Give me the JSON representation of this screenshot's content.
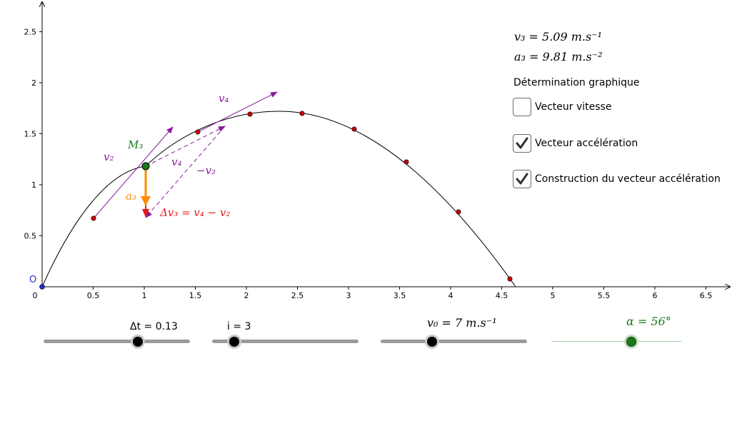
{
  "graph": {
    "origin_label": "O",
    "x_ticks": [
      "0",
      "0.5",
      "1",
      "1.5",
      "2",
      "2.5",
      "3",
      "3.5",
      "4",
      "4.5",
      "5",
      "5.5",
      "6",
      "6.5"
    ],
    "y_ticks": [
      "0.5",
      "1",
      "1.5",
      "2",
      "2.5"
    ],
    "point_label": "M₃",
    "vector_labels": {
      "v2": "v₂",
      "v4": "v₄",
      "minus_v2": "−v₂",
      "a3": "a₃",
      "delta": "Δv₃ = v₄ − v₂"
    },
    "colors": {
      "velocity": "#8b1a9e",
      "acceleration": "#ff8c00",
      "delta": "#e21b1b",
      "point": "#1a7a1a",
      "sample": "#cc0000",
      "origin": "#1f2fcc"
    }
  },
  "readouts": {
    "v3": "v₃ = 5.09 m.s⁻¹",
    "a3": "a₃ = 9.81 m.s⁻²"
  },
  "panel": {
    "title": "Détermination graphique",
    "checkboxes": [
      {
        "label": "Vecteur vitesse",
        "checked": false
      },
      {
        "label": "Vecteur accélération",
        "checked": true
      },
      {
        "label": "Construction du vecteur accélération",
        "checked": true
      }
    ]
  },
  "sliders": {
    "dt": {
      "label": "Δt = 0.13",
      "value": 0.13
    },
    "i": {
      "label": "i = 3",
      "value": 3
    },
    "v0": {
      "label": "v₀ = 7 m.s⁻¹",
      "value": 7
    },
    "alpha": {
      "label": "α = 56°",
      "value": 56
    }
  }
}
